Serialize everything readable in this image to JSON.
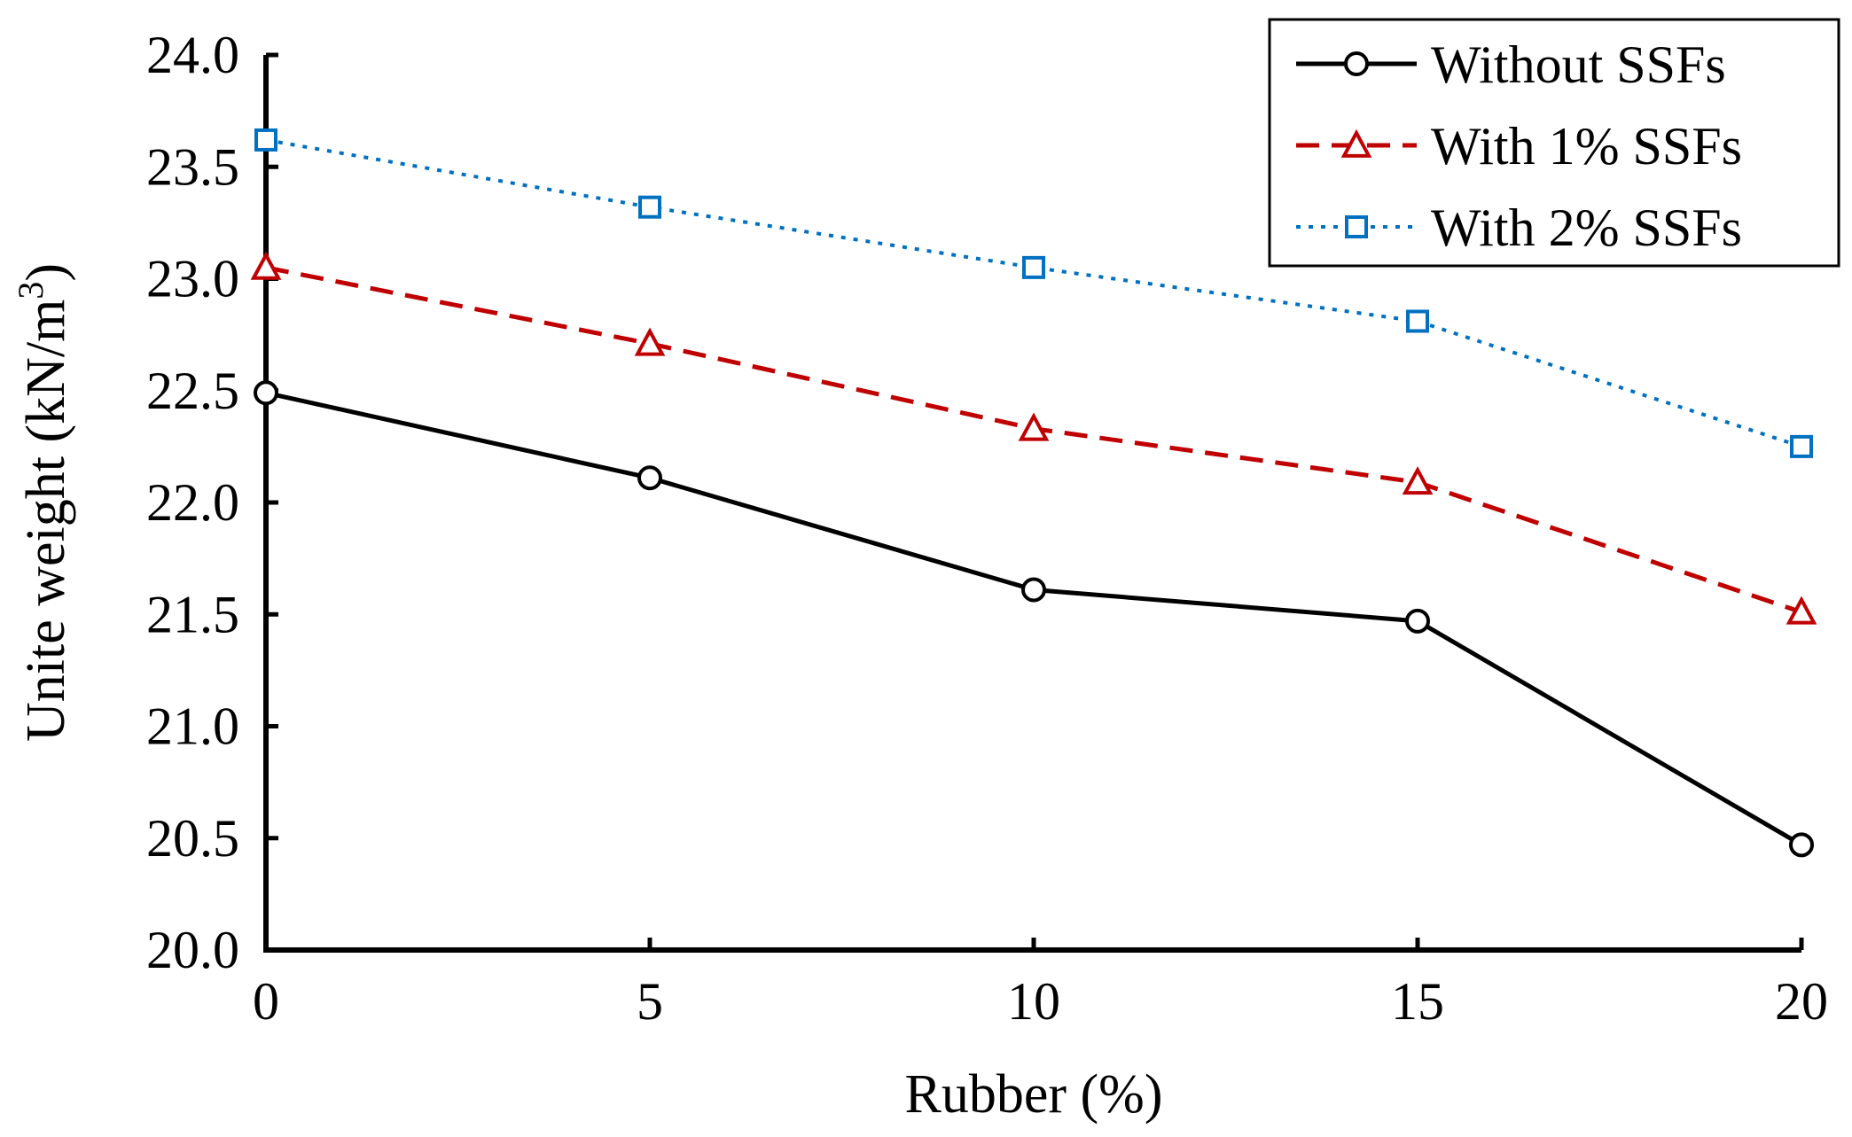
{
  "chart_data": {
    "type": "line",
    "title": "",
    "xlabel": "Rubber (%)",
    "ylabel": "Unite weight (kN/m",
    "ylabel_superscript": "3",
    "ylabel_suffix": ")",
    "x": [
      0,
      5,
      10,
      15,
      20
    ],
    "xlim": [
      0,
      20
    ],
    "ylim": [
      20.0,
      24.0
    ],
    "xticks": [
      "0",
      "5",
      "10",
      "15",
      "20"
    ],
    "yticks": [
      "20.0",
      "20.5",
      "21.0",
      "21.5",
      "22.0",
      "22.5",
      "23.0",
      "23.5",
      "24.0"
    ],
    "grid": false,
    "legend_position": "top-right",
    "series": [
      {
        "name": "Without SSFs",
        "values": [
          22.49,
          22.11,
          21.61,
          21.47,
          20.47
        ],
        "color": "#000000",
        "marker": "circle",
        "line": "solid"
      },
      {
        "name": "With 1% SSFs",
        "values": [
          23.05,
          22.71,
          22.33,
          22.09,
          21.51
        ],
        "color": "#c00000",
        "marker": "triangle",
        "line": "dashed"
      },
      {
        "name": "With 2% SSFs",
        "values": [
          23.62,
          23.32,
          23.05,
          22.81,
          22.25
        ],
        "color": "#0070c0",
        "marker": "square",
        "line": "dotted"
      }
    ]
  }
}
